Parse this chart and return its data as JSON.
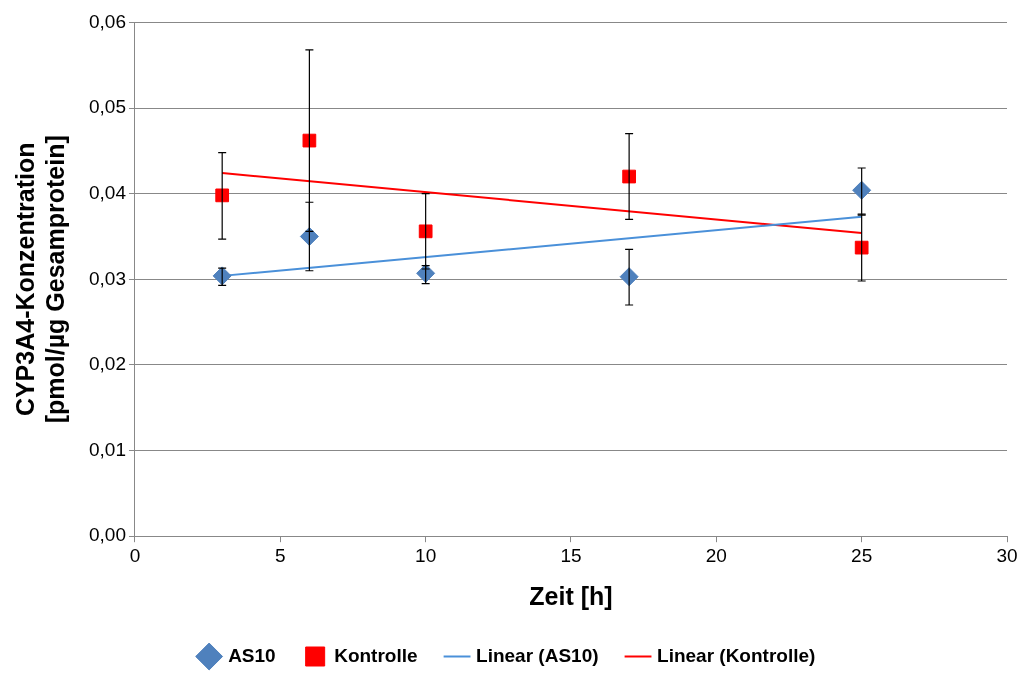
{
  "chart_data": {
    "type": "scatter",
    "xlabel": "Zeit [h]",
    "ylabel": "CYP3A4-Konzentration\n[pmol/µg Gesamprotein]",
    "xlim": [
      0,
      30
    ],
    "xticks": [
      0,
      5,
      10,
      15,
      20,
      25,
      30
    ],
    "ylim": [
      0,
      0.06
    ],
    "yticks": [
      {
        "value": 0,
        "label": "0,00"
      },
      {
        "value": 0.01,
        "label": "0,01"
      },
      {
        "value": 0.02,
        "label": "0,02"
      },
      {
        "value": 0.03,
        "label": "0,03"
      },
      {
        "value": 0.04,
        "label": "0,04"
      },
      {
        "value": 0.05,
        "label": "0,05"
      },
      {
        "value": 0.06,
        "label": "0,06"
      }
    ],
    "grid": "y",
    "legend": "bottom",
    "series": [
      {
        "name": "AS10",
        "type": "scatter",
        "marker": "diamond",
        "color": "#4f81bd",
        "x": [
          3,
          6,
          10,
          17,
          25
        ],
        "values": [
          0.0304,
          0.035,
          0.0307,
          0.0303,
          0.0404
        ],
        "errors": [
          [
            0.0293,
            0.0313
          ],
          [
            0.031,
            0.039
          ],
          [
            0.0295,
            0.0316
          ],
          [
            0.027,
            0.0335
          ],
          [
            0.0375,
            0.043
          ]
        ]
      },
      {
        "name": "Kontrolle",
        "type": "scatter",
        "marker": "square",
        "color": "#ff0000",
        "x": [
          3,
          6,
          10,
          17,
          25
        ],
        "values": [
          0.0398,
          0.0462,
          0.0356,
          0.042,
          0.0337
        ],
        "errors": [
          [
            0.0347,
            0.0448
          ],
          [
            0.0356,
            0.0568
          ],
          [
            0.0312,
            0.04
          ],
          [
            0.037,
            0.047
          ],
          [
            0.0298,
            0.0376
          ]
        ]
      },
      {
        "name": "Linear (AS10)",
        "type": "line",
        "marker": "none",
        "color": "#4a90d9",
        "x": [
          3,
          25
        ],
        "values": [
          0.0304,
          0.0373
        ]
      },
      {
        "name": "Linear (Kontrolle)",
        "type": "line",
        "marker": "none",
        "color": "#ff0000",
        "x": [
          3,
          25
        ],
        "values": [
          0.0424,
          0.0354
        ]
      }
    ]
  }
}
